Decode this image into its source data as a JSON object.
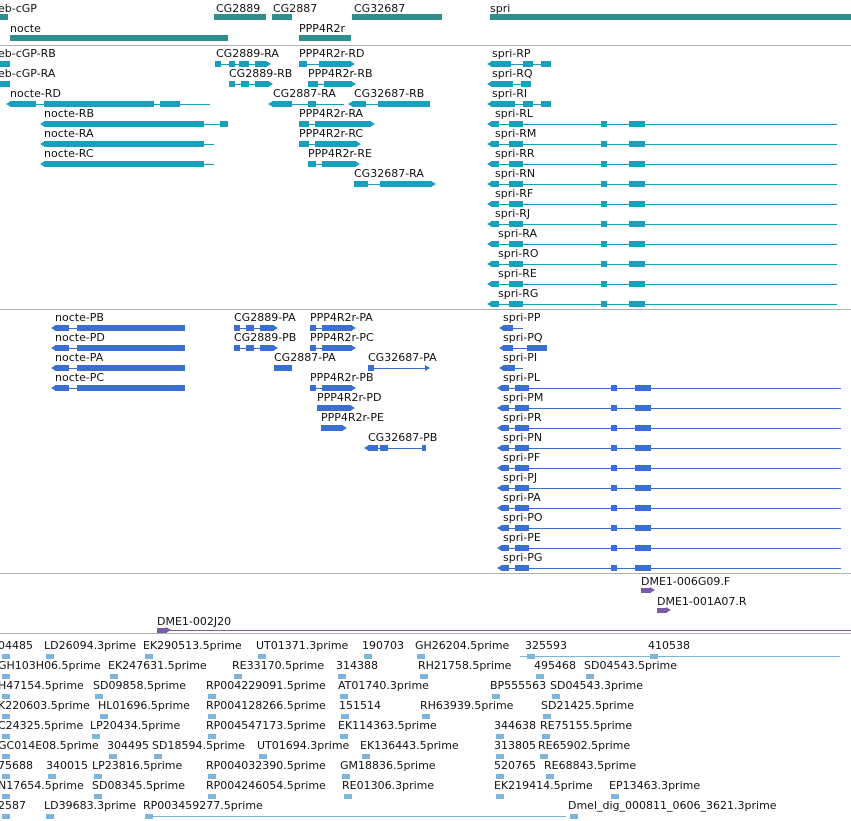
{
  "colors": {
    "gene": "#2f8f8f",
    "mrna": "#17a0bc",
    "protein": "#3a6fd1",
    "clone": "#7b5aa6",
    "est": "#7fb5d8",
    "divider": "#b0b0b0"
  },
  "tracks": {
    "genes": {
      "items": [
        {
          "label": "eb-cGP"
        },
        {
          "label": "CG2889"
        },
        {
          "label": "CG2887"
        },
        {
          "label": "CG32687"
        },
        {
          "label": "spri"
        },
        {
          "label": "nocte"
        },
        {
          "label": "PPP4R2r"
        }
      ]
    },
    "transcripts": {
      "items": [
        {
          "label": "eb-cGP-RB"
        },
        {
          "label": "CG2889-RA"
        },
        {
          "label": "PPP4R2r-RD"
        },
        {
          "label": "spri-RP"
        },
        {
          "label": "eb-cGP-RA"
        },
        {
          "label": "CG2889-RB"
        },
        {
          "label": "PPP4R2r-RB"
        },
        {
          "label": "spri-RQ"
        },
        {
          "label": "nocte-RD"
        },
        {
          "label": "CG2887-RA"
        },
        {
          "label": "CG32687-RB"
        },
        {
          "label": "spri-RI"
        },
        {
          "label": "nocte-RB"
        },
        {
          "label": "PPP4R2r-RA"
        },
        {
          "label": "spri-RL"
        },
        {
          "label": "nocte-RA"
        },
        {
          "label": "PPP4R2r-RC"
        },
        {
          "label": "spri-RM"
        },
        {
          "label": "nocte-RC"
        },
        {
          "label": "PPP4R2r-RE"
        },
        {
          "label": "spri-RR"
        },
        {
          "label": "CG32687-RA"
        },
        {
          "label": "spri-RN"
        },
        {
          "label": "spri-RF"
        },
        {
          "label": "spri-RJ"
        },
        {
          "label": "spri-RA"
        },
        {
          "label": "spri-RO"
        },
        {
          "label": "spri-RE"
        },
        {
          "label": "spri-RG"
        }
      ]
    },
    "proteins": {
      "items": [
        {
          "label": "nocte-PB"
        },
        {
          "label": "CG2889-PA"
        },
        {
          "label": "PPP4R2r-PA"
        },
        {
          "label": "spri-PP"
        },
        {
          "label": "nocte-PD"
        },
        {
          "label": "CG2889-PB"
        },
        {
          "label": "PPP4R2r-PC"
        },
        {
          "label": "spri-PQ"
        },
        {
          "label": "nocte-PA"
        },
        {
          "label": "CG2887-PA"
        },
        {
          "label": "CG32687-PA"
        },
        {
          "label": "spri-PI"
        },
        {
          "label": "nocte-PC"
        },
        {
          "label": "PPP4R2r-PB"
        },
        {
          "label": "spri-PL"
        },
        {
          "label": "PPP4R2r-PD"
        },
        {
          "label": "spri-PM"
        },
        {
          "label": "PPP4R2r-PE"
        },
        {
          "label": "spri-PR"
        },
        {
          "label": "CG32687-PB"
        },
        {
          "label": "spri-PN"
        },
        {
          "label": "spri-PF"
        },
        {
          "label": "spri-PJ"
        },
        {
          "label": "spri-PA"
        },
        {
          "label": "spri-PO"
        },
        {
          "label": "spri-PE"
        },
        {
          "label": "spri-PG"
        }
      ]
    },
    "clones": {
      "items": [
        {
          "label": "DME1-006G09.F"
        },
        {
          "label": "DME1-001A07.R"
        },
        {
          "label": "DME1-002J20"
        }
      ]
    },
    "ests": {
      "items": [
        {
          "label": "04485"
        },
        {
          "label": "LD26094.3prime"
        },
        {
          "label": "EK290513.5prime"
        },
        {
          "label": "UT01371.3prime"
        },
        {
          "label": "190703"
        },
        {
          "label": "GH26204.5prime"
        },
        {
          "label": "325593"
        },
        {
          "label": "410538"
        },
        {
          "label": "GH103H06.5prime"
        },
        {
          "label": "EK247631.5prime"
        },
        {
          "label": "RE33170.5prime"
        },
        {
          "label": "314388"
        },
        {
          "label": "RH21758.5prime"
        },
        {
          "label": "495468"
        },
        {
          "label": "SD04543.5prime"
        },
        {
          "label": "H47154.5prime"
        },
        {
          "label": "SD09858.5prime"
        },
        {
          "label": "RP004229091.5prime"
        },
        {
          "label": "AT01740.3prime"
        },
        {
          "label": "BP555563"
        },
        {
          "label": "SD04543.3prime"
        },
        {
          "label": "K220603.5prime"
        },
        {
          "label": "HL01696.5prime"
        },
        {
          "label": "RP004128266.5prime"
        },
        {
          "label": "151514"
        },
        {
          "label": "RH63939.5prime"
        },
        {
          "label": "SD21425.5prime"
        },
        {
          "label": "C24325.5prime"
        },
        {
          "label": "LP20434.5prime"
        },
        {
          "label": "RP004547173.5prime"
        },
        {
          "label": "EK114363.5prime"
        },
        {
          "label": "344638"
        },
        {
          "label": "RE75155.5prime"
        },
        {
          "label": "GC014E08.5prime"
        },
        {
          "label": "304495"
        },
        {
          "label": "SD18594.5prime"
        },
        {
          "label": "UT01694.3prime"
        },
        {
          "label": "EK136443.5prime"
        },
        {
          "label": "313805"
        },
        {
          "label": "RE65902.5prime"
        },
        {
          "label": "75688"
        },
        {
          "label": "340015"
        },
        {
          "label": "LP23816.5prime"
        },
        {
          "label": "RP004032390.5prime"
        },
        {
          "label": "GM18836.5prime"
        },
        {
          "label": "520765"
        },
        {
          "label": "RE68843.5prime"
        },
        {
          "label": "N17654.5prime"
        },
        {
          "label": "SD08345.5prime"
        },
        {
          "label": "RP004246054.5prime"
        },
        {
          "label": "RE01306.3prime"
        },
        {
          "label": "EK219414.5prime"
        },
        {
          "label": "EP13463.3prime"
        },
        {
          "label": "2587"
        },
        {
          "label": "LD39683.3prime"
        },
        {
          "label": "RP003459277.5prime"
        },
        {
          "label": "Dmel_dig_000811_0606_3621.3prime"
        }
      ]
    }
  }
}
